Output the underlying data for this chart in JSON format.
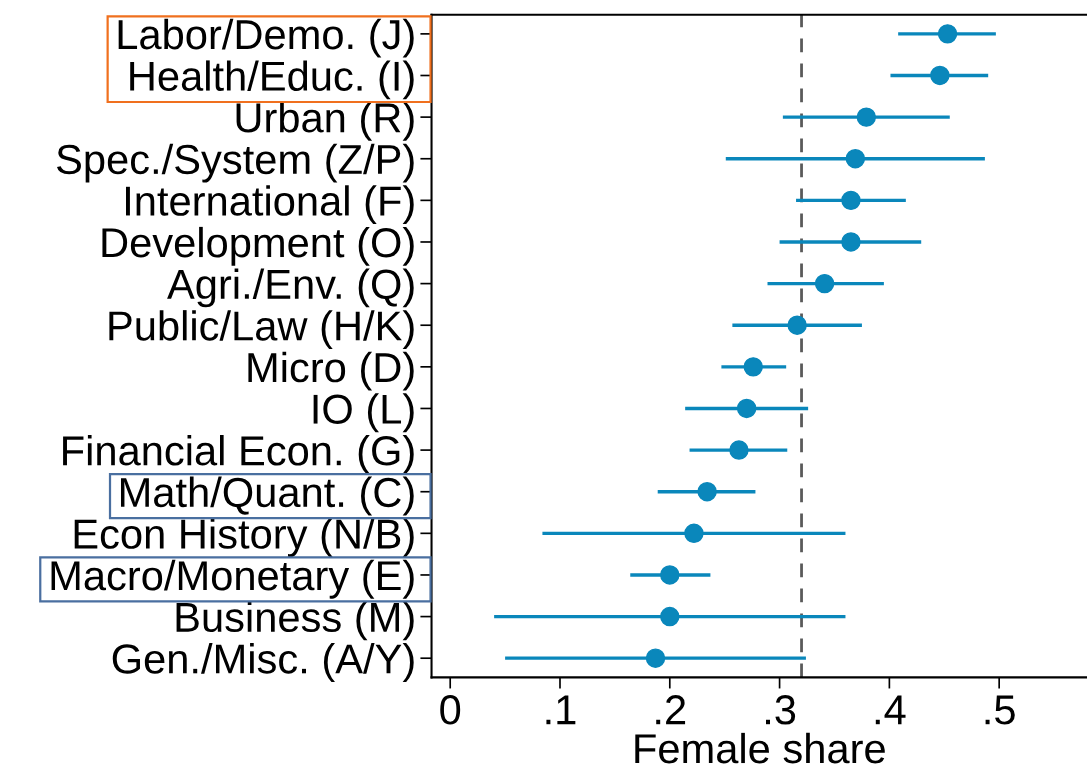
{
  "chart_data": {
    "type": "scatter",
    "orientation": "horizontal",
    "xlabel": "Female share",
    "categories": [
      "Labor/Demo. (J)",
      "Health/Educ. (I)",
      "Urban (R)",
      "Spec./System (Z/P)",
      "International (F)",
      "Development (O)",
      "Agri./Env. (Q)",
      "Public/Law (H/K)",
      "Micro (D)",
      "IO (L)",
      "Financial Econ. (G)",
      "Math/Quant. (C)",
      "Econ History (N/B)",
      "Macro/Monetary (E)",
      "Business (M)",
      "Gen./Misc. (A/Y)"
    ],
    "series": [
      {
        "color": "#0a87bb",
        "values": [
          0.453,
          0.446,
          0.379,
          0.369,
          0.365,
          0.365,
          0.341,
          0.316,
          0.276,
          0.27,
          0.263,
          0.234,
          0.222,
          0.2,
          0.2,
          0.187
        ],
        "errors": [
          [
            0.408,
            0.497
          ],
          [
            0.401,
            0.49
          ],
          [
            0.303,
            0.455
          ],
          [
            0.251,
            0.487
          ],
          [
            0.315,
            0.415
          ],
          [
            0.3,
            0.429
          ],
          [
            0.289,
            0.395
          ],
          [
            0.257,
            0.375
          ],
          [
            0.247,
            0.306
          ],
          [
            0.214,
            0.326
          ],
          [
            0.218,
            0.307
          ],
          [
            0.189,
            0.278
          ],
          [
            0.084,
            0.36
          ],
          [
            0.164,
            0.237
          ],
          [
            0.04,
            0.36
          ],
          [
            0.05,
            0.324
          ]
        ]
      }
    ],
    "marker": "circle",
    "xlim": [
      -0.017,
      0.58
    ],
    "xticks": [
      {
        "value": 0,
        "label": "0"
      },
      {
        "value": 0.1,
        "label": ".1"
      },
      {
        "value": 0.2,
        "label": ".2"
      },
      {
        "value": 0.3,
        "label": ".3"
      },
      {
        "value": 0.4,
        "label": ".4"
      },
      {
        "value": 0.5,
        "label": ".5"
      }
    ],
    "ref_lines": [
      {
        "axis": "x",
        "value": 0.32,
        "color": "#5a5a5a",
        "line_style": "dashed"
      }
    ],
    "grid": false,
    "legend": false
  }
}
